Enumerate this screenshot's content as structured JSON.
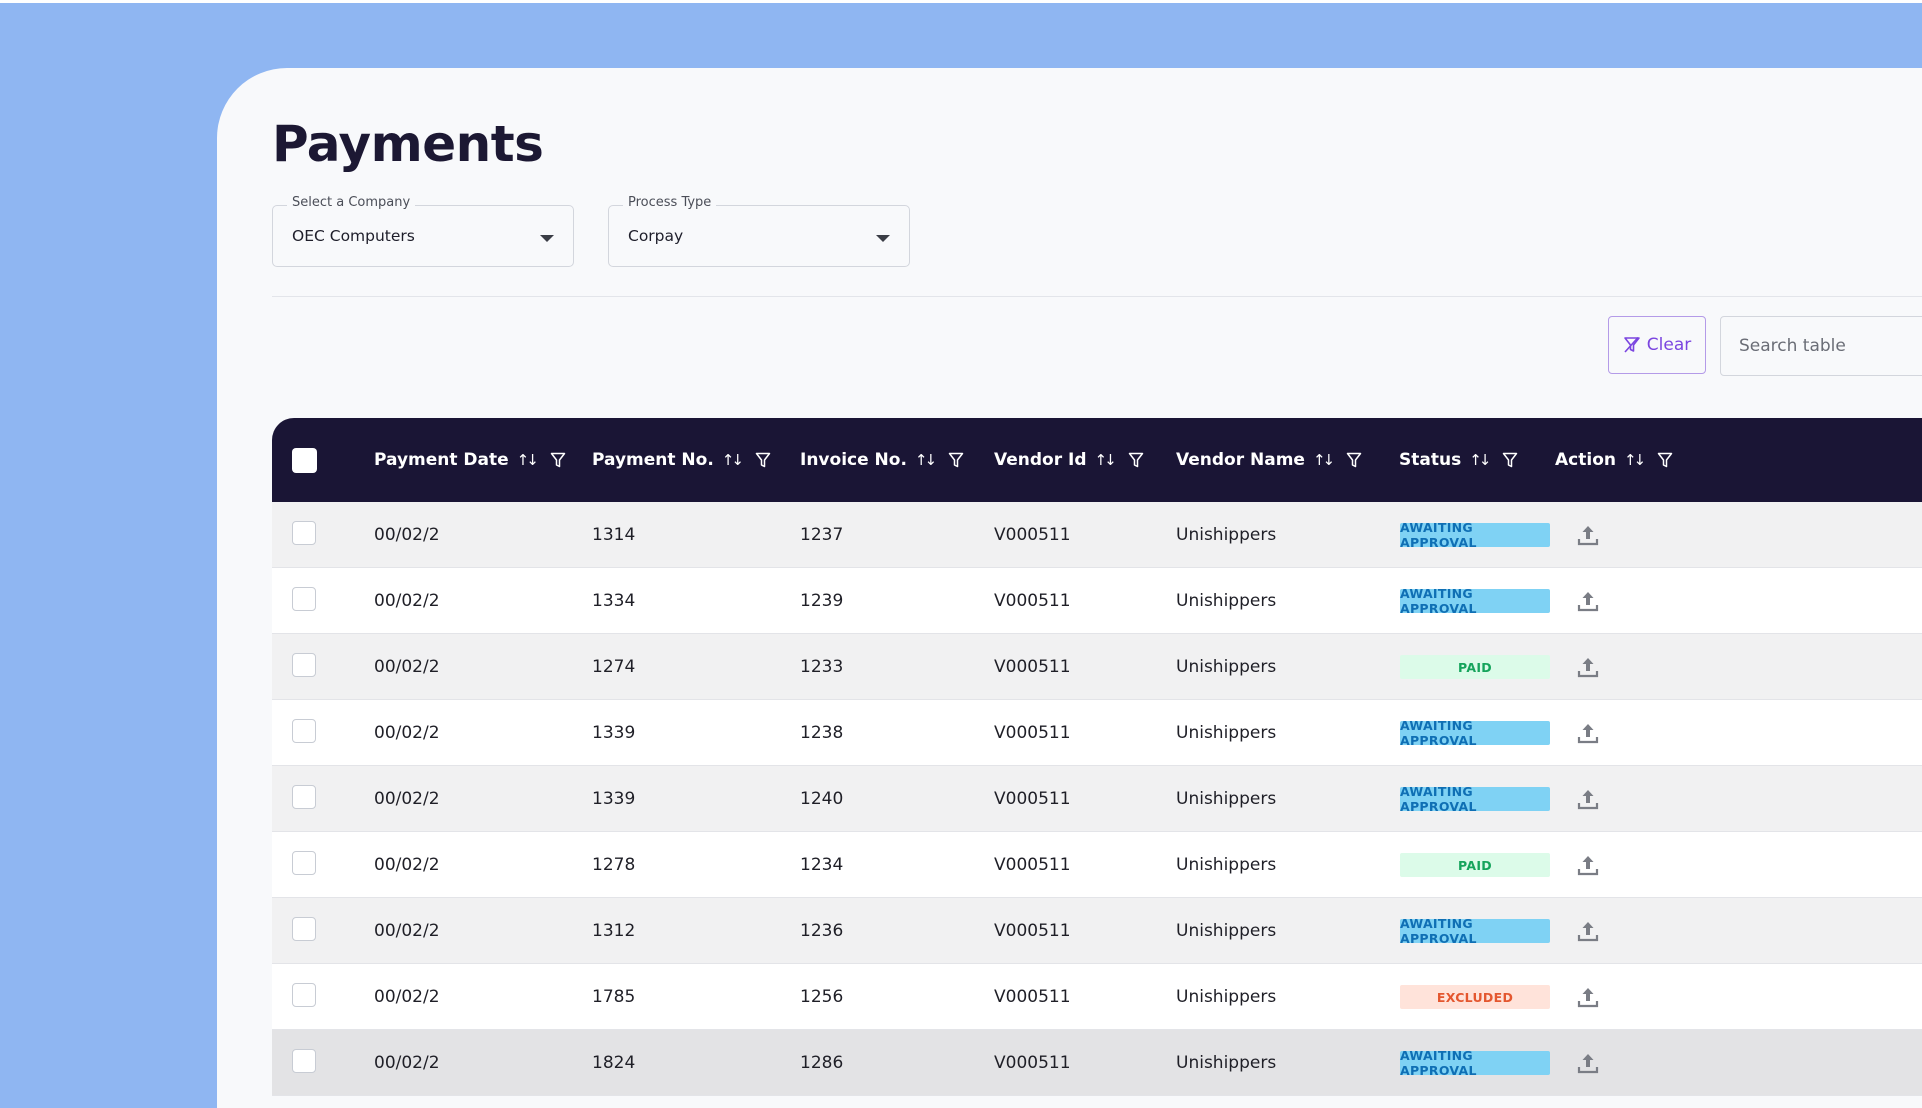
{
  "page": {
    "title": "Payments"
  },
  "filters": {
    "company": {
      "label": "Select a Company",
      "value": "OEC Computers"
    },
    "process_type": {
      "label": "Process Type",
      "value": "Corpay"
    }
  },
  "toolbar": {
    "clear_label": "Clear",
    "search_placeholder": "Search table"
  },
  "table": {
    "columns": [
      "Payment Date",
      "Payment No.",
      "Invoice No.",
      "Vendor Id",
      "Vendor Name",
      "Status",
      "Action"
    ],
    "rows": [
      {
        "payment_date": "00/02/2",
        "payment_no": "1314",
        "invoice_no": "1237",
        "vendor_id": "V000511",
        "vendor_name": "Unishippers",
        "status": "AWAITING APPROVAL",
        "status_kind": "awaiting"
      },
      {
        "payment_date": "00/02/2",
        "payment_no": "1334",
        "invoice_no": "1239",
        "vendor_id": "V000511",
        "vendor_name": "Unishippers",
        "status": "AWAITING APPROVAL",
        "status_kind": "awaiting"
      },
      {
        "payment_date": "00/02/2",
        "payment_no": "1274",
        "invoice_no": "1233",
        "vendor_id": "V000511",
        "vendor_name": "Unishippers",
        "status": "PAID",
        "status_kind": "paid"
      },
      {
        "payment_date": "00/02/2",
        "payment_no": "1339",
        "invoice_no": "1238",
        "vendor_id": "V000511",
        "vendor_name": "Unishippers",
        "status": "AWAITING APPROVAL",
        "status_kind": "awaiting"
      },
      {
        "payment_date": "00/02/2",
        "payment_no": "1339",
        "invoice_no": "1240",
        "vendor_id": "V000511",
        "vendor_name": "Unishippers",
        "status": "AWAITING APPROVAL",
        "status_kind": "awaiting"
      },
      {
        "payment_date": "00/02/2",
        "payment_no": "1278",
        "invoice_no": "1234",
        "vendor_id": "V000511",
        "vendor_name": "Unishippers",
        "status": "PAID",
        "status_kind": "paid"
      },
      {
        "payment_date": "00/02/2",
        "payment_no": "1312",
        "invoice_no": "1236",
        "vendor_id": "V000511",
        "vendor_name": "Unishippers",
        "status": "AWAITING APPROVAL",
        "status_kind": "awaiting"
      },
      {
        "payment_date": "00/02/2",
        "payment_no": "1785",
        "invoice_no": "1256",
        "vendor_id": "V000511",
        "vendor_name": "Unishippers",
        "status": "EXCLUDED",
        "status_kind": "excluded"
      },
      {
        "payment_date": "00/02/2",
        "payment_no": "1824",
        "invoice_no": "1286",
        "vendor_id": "V000511",
        "vendor_name": "Unishippers",
        "status": "AWAITING APPROVAL",
        "status_kind": "awaiting"
      }
    ]
  },
  "icons": {
    "sort": "sort-icon",
    "filter": "filter-icon",
    "filter_clear": "filter-clear-icon",
    "dropdown": "chevron-down-icon",
    "upload": "upload-icon"
  }
}
